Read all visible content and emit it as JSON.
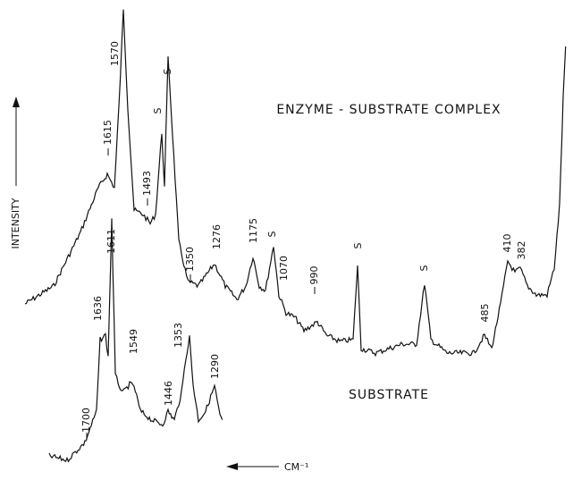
{
  "axis_labels": {
    "y": "INTENSITY",
    "x": "CM⁻¹"
  },
  "traces": [
    {
      "label": "ENZYME - SUBSTRATE COMPLEX",
      "peaks": [
        "1615",
        "1570",
        "1493",
        "S",
        "S",
        "1350",
        "1276",
        "1175",
        "S",
        "1070",
        "990",
        "S",
        "S",
        "485",
        "410",
        "382"
      ]
    },
    {
      "label": "SUBSTRATE",
      "peaks": [
        "1700",
        "1636",
        "1611",
        "1549",
        "1446",
        "1353",
        "1290"
      ]
    }
  ]
}
